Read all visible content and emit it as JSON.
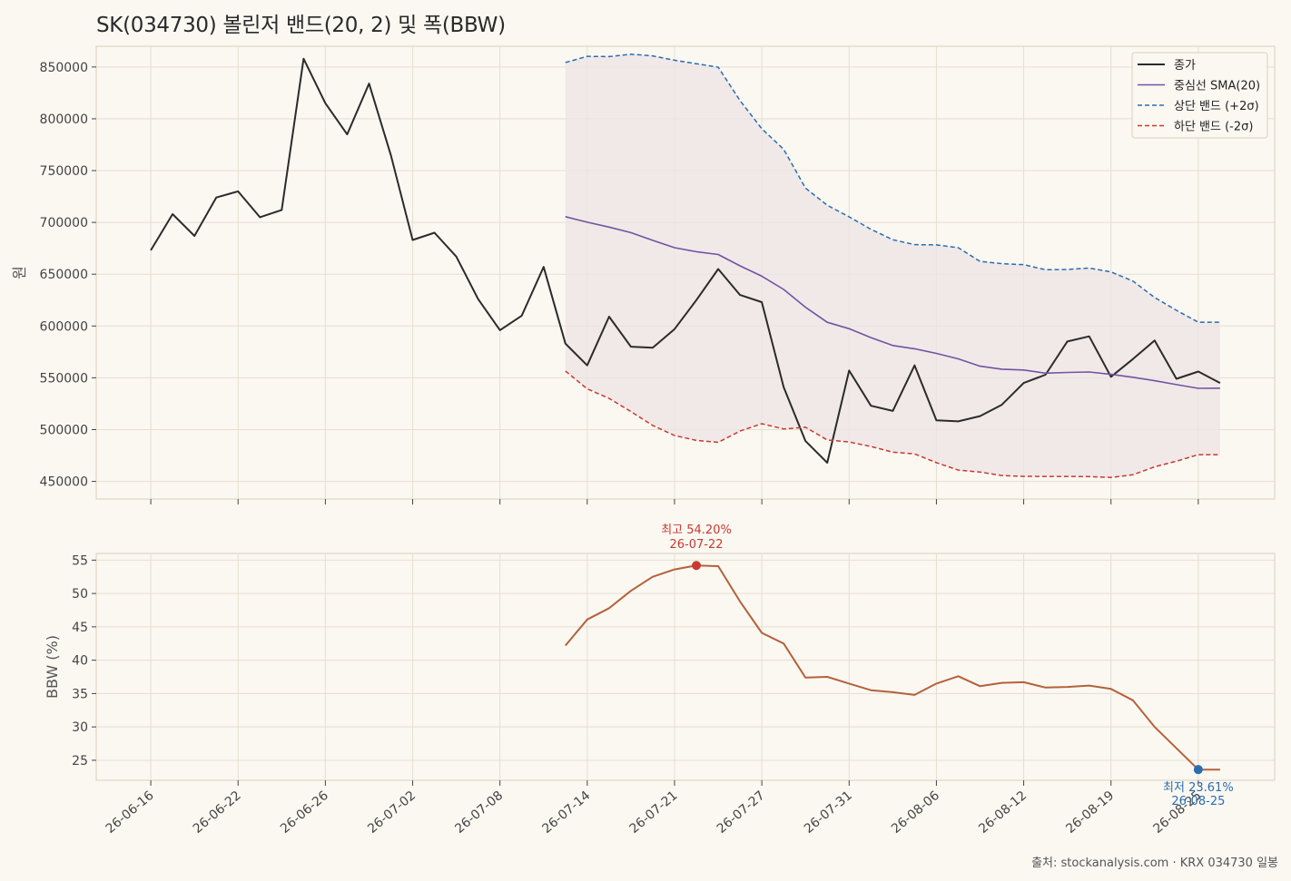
{
  "title": "SK(034730) 볼린저 밴드(20, 2) 및 폭(BBW)",
  "source": "출처: stockanalysis.com · KRX 034730 일봉",
  "colors": {
    "background": "#fbf8f2",
    "close": "#2b2b2b",
    "sma": "#7353a3",
    "upper": "#2a6db0",
    "lower": "#c8392f",
    "band_fill": "#ece4e4",
    "bbw": "#b5613a",
    "max_marker": "#c8392f",
    "min_marker": "#2a6db0"
  },
  "chart_data": [
    {
      "type": "line",
      "ylabel": "원",
      "ylim": [
        433000,
        870000
      ],
      "yticks": [
        450000,
        500000,
        550000,
        600000,
        650000,
        700000,
        750000,
        800000,
        850000
      ],
      "grid": true,
      "legend_position": "top-right",
      "x_index_range": [
        -2.5,
        51.5
      ],
      "series": [
        {
          "name": "종가",
          "style": "solid",
          "start_index": 0,
          "values": [
            673000,
            708000,
            687000,
            724000,
            730000,
            705000,
            712000,
            858000,
            815000,
            785000,
            834000,
            765000,
            683000,
            690000,
            667000,
            626000,
            596000,
            610000,
            657000,
            583000,
            562000,
            609000,
            580000,
            579000,
            597000,
            625000,
            655000,
            630000,
            623000,
            541000,
            489000,
            468000,
            557000,
            523000,
            518000,
            562000,
            509000,
            508000,
            513000,
            524000,
            545000,
            553000,
            585000,
            590000,
            551000,
            568000,
            586000,
            549000,
            556000,
            545000
          ]
        },
        {
          "name": "중심선 SMA(20)",
          "style": "solid",
          "start_index": 19,
          "values": [
            705500,
            700200,
            695500,
            690100,
            682700,
            675600,
            671700,
            669000,
            658100,
            648100,
            635300,
            618100,
            603600,
            597400,
            588800,
            581200,
            578000,
            573600,
            568300,
            561200,
            558300,
            557500,
            554500,
            555200,
            555600,
            553300,
            550500,
            547200,
            543400,
            539800,
            540000
          ]
        },
        {
          "name": "상단 밴드 (+2σ)",
          "style": "dashed",
          "start_index": 19,
          "values": [
            854300,
            860300,
            860000,
            862300,
            860700,
            856500,
            853200,
            849800,
            817600,
            790400,
            770600,
            733100,
            716600,
            705400,
            693400,
            683300,
            678600,
            678300,
            675600,
            662400,
            660200,
            659200,
            654300,
            654600,
            656000,
            652200,
            643400,
            627500,
            615200,
            603700,
            603700
          ]
        },
        {
          "name": "하단 밴드 (-2σ)",
          "style": "dashed",
          "start_index": 19,
          "values": [
            556600,
            539300,
            530100,
            517400,
            504000,
            494300,
            489600,
            487700,
            498600,
            505700,
            500600,
            502300,
            490000,
            488100,
            483700,
            478300,
            476600,
            468100,
            460900,
            459000,
            455700,
            454900,
            454800,
            454800,
            454600,
            453800,
            456400,
            464100,
            469500,
            475800,
            475800
          ]
        }
      ]
    },
    {
      "type": "line",
      "ylabel": "BBW (%)",
      "ylim": [
        22,
        56
      ],
      "yticks": [
        25,
        30,
        35,
        40,
        45,
        50,
        55
      ],
      "grid": true,
      "x_index_range": [
        -2.5,
        51.5
      ],
      "x_tick_indices": [
        0,
        4,
        8,
        12,
        16,
        20,
        24,
        28,
        32,
        36,
        40,
        44,
        48
      ],
      "x_tick_labels": [
        "26-06-16",
        "26-06-22",
        "26-06-26",
        "26-07-02",
        "26-07-08",
        "26-07-14",
        "26-07-21",
        "26-07-27",
        "26-07-31",
        "26-08-06",
        "26-08-12",
        "26-08-19",
        "26-08-25"
      ],
      "series": [
        {
          "name": "BBW",
          "style": "solid",
          "start_index": 19,
          "values": [
            42.2,
            46.1,
            47.8,
            50.4,
            52.5,
            53.6,
            54.2,
            54.1,
            48.8,
            44.1,
            42.5,
            37.4,
            37.5,
            36.5,
            35.5,
            35.2,
            34.8,
            36.5,
            37.6,
            36.1,
            36.6,
            36.7,
            35.9,
            36.0,
            36.2,
            35.7,
            34.0,
            30.0,
            26.8,
            23.6,
            23.6
          ]
        }
      ],
      "annotations": [
        {
          "index": 25,
          "value": 54.2,
          "label": "최고 54.20%",
          "date": "26-07-22",
          "position": "above"
        },
        {
          "index": 48,
          "value": 23.61,
          "label": "최저 23.61%",
          "date": "26-08-25",
          "position": "below"
        }
      ]
    }
  ]
}
